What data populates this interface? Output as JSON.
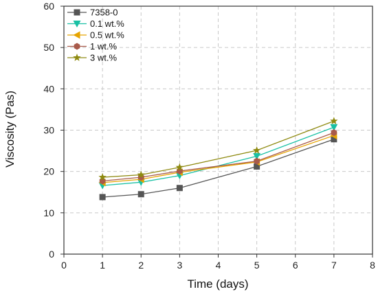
{
  "chart_data": {
    "type": "line",
    "title": "",
    "xlabel": "Time (days)",
    "ylabel": "Viscosity (Pas)",
    "xlim": [
      0,
      8
    ],
    "ylim": [
      0,
      60
    ],
    "xticks": [
      0,
      1,
      2,
      3,
      4,
      5,
      6,
      7,
      8
    ],
    "yticks": [
      0,
      10,
      20,
      30,
      40,
      50,
      60
    ],
    "x": [
      1,
      2,
      3,
      5,
      7
    ],
    "grid": true,
    "legend_position": "top-left",
    "series": [
      {
        "name": "7358-0",
        "values": [
          13.8,
          14.5,
          16.0,
          21.2,
          27.8
        ],
        "color": "#555555",
        "marker": "square"
      },
      {
        "name": "0.1 wt.%",
        "values": [
          16.6,
          17.4,
          19.0,
          23.7,
          30.7
        ],
        "color": "#19c0a4",
        "marker": "triangle-down"
      },
      {
        "name": "0.5 wt.%",
        "values": [
          17.3,
          18.1,
          19.8,
          22.3,
          28.7
        ],
        "color": "#e6a400",
        "marker": "triangle-left"
      },
      {
        "name": "1 wt.%",
        "values": [
          17.7,
          18.6,
          20.1,
          22.5,
          29.4
        ],
        "color": "#a85a4a",
        "marker": "hexagon"
      },
      {
        "name": "3 wt.%",
        "values": [
          18.6,
          19.2,
          21.0,
          25.1,
          32.2
        ],
        "color": "#8e8a10",
        "marker": "star"
      }
    ]
  }
}
